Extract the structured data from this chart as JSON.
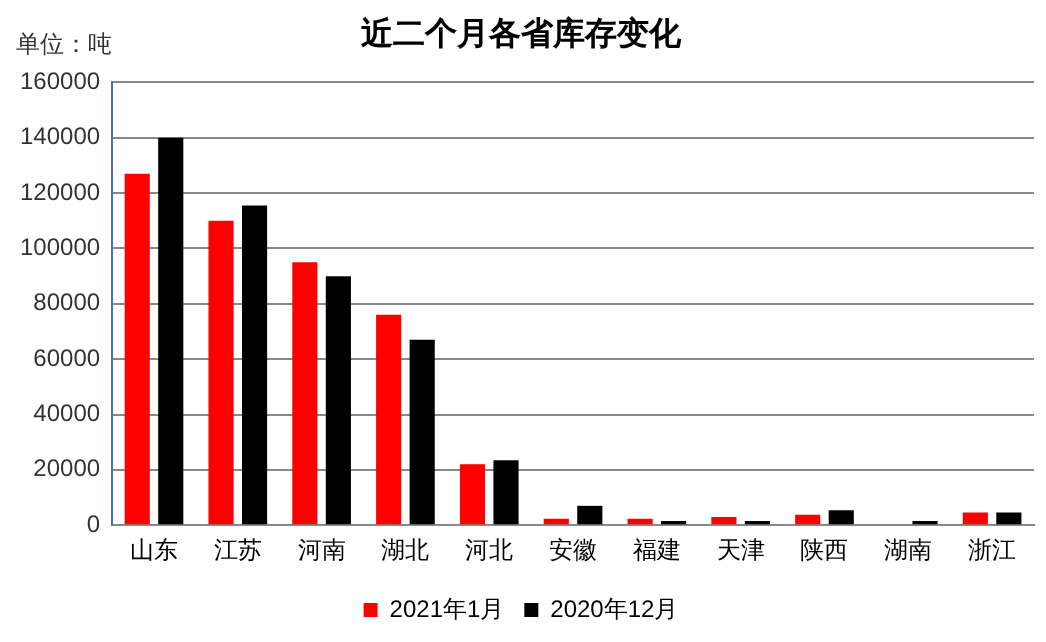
{
  "chart_data": {
    "type": "bar",
    "title": "近二个月各省库存变化",
    "annotations": [
      "单位：吨"
    ],
    "categories": [
      "山东",
      "江苏",
      "河南",
      "湖北",
      "河北",
      "安徽",
      "福建",
      "天津",
      "陕西",
      "湖南",
      "浙江"
    ],
    "series": [
      {
        "name": "2021年1月",
        "color": "#ff0000",
        "values": [
          127000,
          110000,
          95000,
          76000,
          22000,
          2300,
          2300,
          3000,
          3800,
          0,
          4600
        ]
      },
      {
        "name": "2020年12月",
        "color": "#000000",
        "values": [
          140000,
          115500,
          90000,
          67000,
          23500,
          7000,
          1500,
          1500,
          5400,
          1500,
          4600
        ]
      }
    ],
    "ylim": [
      0,
      160000
    ],
    "yticks": [
      0,
      20000,
      40000,
      60000,
      80000,
      100000,
      120000,
      140000,
      160000
    ],
    "grid": "y",
    "legend": "bottom"
  }
}
